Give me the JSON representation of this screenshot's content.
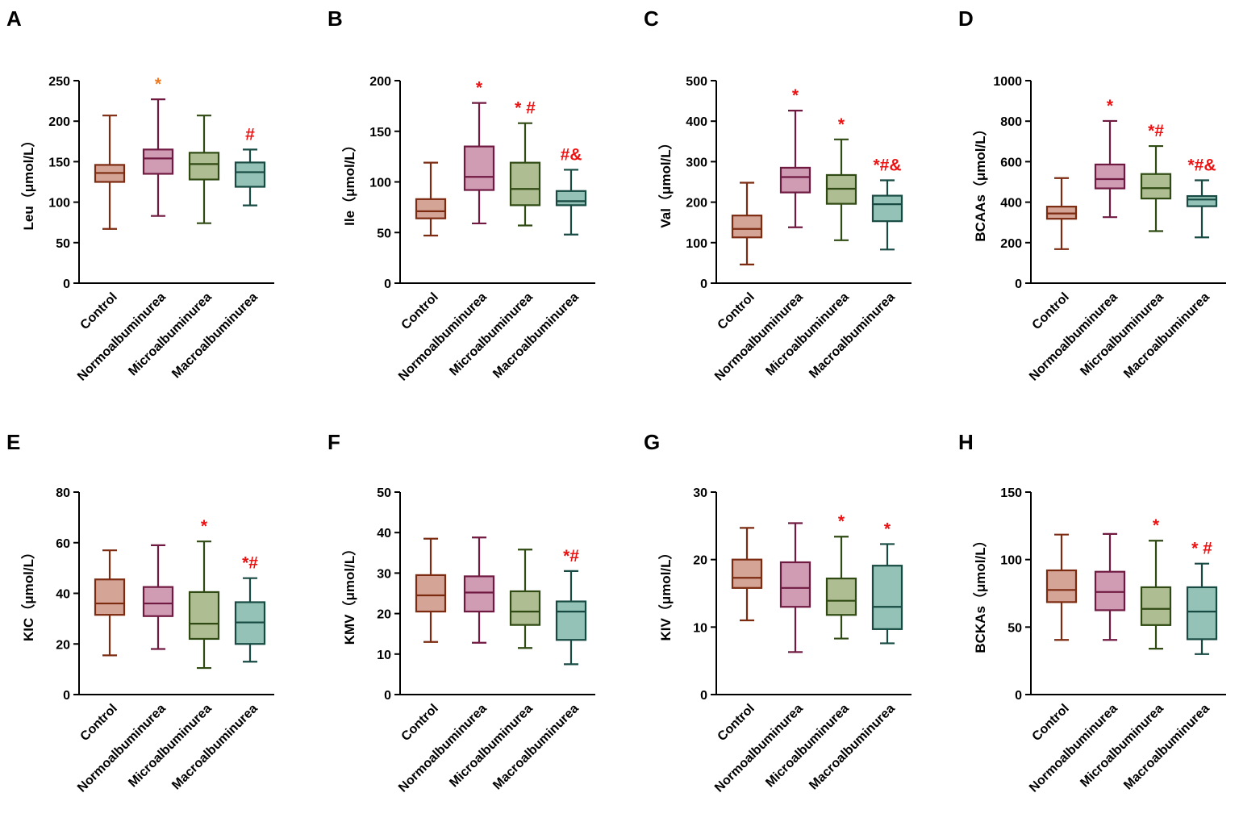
{
  "categories": [
    "Control",
    "Normoalbuminurea",
    "Microalbuminurea",
    "Macroalbuminurea"
  ],
  "colors": {
    "fill": [
      "#d4a596",
      "#cf9cb4",
      "#afbd92",
      "#94c2b6"
    ],
    "stroke": [
      "#7c2a10",
      "#701a42",
      "#2f4a12",
      "#164a42"
    ],
    "sig_red": "#ee1111",
    "sig_orange": "#f07820",
    "axis": "#000000"
  },
  "chart_data": [
    {
      "panel": "A",
      "type": "box",
      "ylabel": "Leu（μmol/L）",
      "ylim": [
        0,
        250
      ],
      "ticks": [
        0,
        50,
        100,
        150,
        200,
        250
      ],
      "boxes": [
        {
          "min": 67,
          "q1": 125,
          "median": 136,
          "q3": 146,
          "max": 207
        },
        {
          "min": 83,
          "q1": 135,
          "median": 154,
          "q3": 165,
          "max": 227
        },
        {
          "min": 74,
          "q1": 128,
          "median": 147,
          "q3": 161,
          "max": 207
        },
        {
          "min": 96,
          "q1": 119,
          "median": 137,
          "q3": 149,
          "max": 165
        }
      ],
      "annotations": [
        "",
        "*",
        "",
        "#"
      ],
      "annotation_colors": [
        "red",
        "orange",
        "red",
        "red"
      ]
    },
    {
      "panel": "B",
      "type": "box",
      "ylabel": "Ile（μmol/L）",
      "ylim": [
        0,
        200
      ],
      "ticks": [
        0,
        50,
        100,
        150,
        200
      ],
      "boxes": [
        {
          "min": 47,
          "q1": 64,
          "median": 71,
          "q3": 83,
          "max": 119
        },
        {
          "min": 59,
          "q1": 92,
          "median": 105,
          "q3": 135,
          "max": 178
        },
        {
          "min": 57,
          "q1": 77,
          "median": 93,
          "q3": 119,
          "max": 158
        },
        {
          "min": 48,
          "q1": 77,
          "median": 81,
          "q3": 91,
          "max": 112
        }
      ],
      "annotations": [
        "",
        "*",
        "* #",
        "#&"
      ],
      "annotation_colors": [
        "red",
        "red",
        "red",
        "red"
      ]
    },
    {
      "panel": "C",
      "type": "box",
      "ylabel": "Val（μmol/L）",
      "ylim": [
        0,
        500
      ],
      "ticks": [
        0,
        100,
        200,
        300,
        400,
        500
      ],
      "boxes": [
        {
          "min": 46,
          "q1": 113,
          "median": 134,
          "q3": 167,
          "max": 248
        },
        {
          "min": 138,
          "q1": 224,
          "median": 262,
          "q3": 285,
          "max": 426
        },
        {
          "min": 106,
          "q1": 196,
          "median": 233,
          "q3": 267,
          "max": 355
        },
        {
          "min": 83,
          "q1": 153,
          "median": 195,
          "q3": 216,
          "max": 254
        }
      ],
      "annotations": [
        "",
        "*",
        "*",
        "*#&"
      ],
      "annotation_colors": [
        "red",
        "red",
        "red",
        "red"
      ]
    },
    {
      "panel": "D",
      "type": "box",
      "ylabel": "BCAAs（μmol/L）",
      "ylim": [
        0,
        1000
      ],
      "ticks": [
        0,
        200,
        400,
        600,
        800,
        1000
      ],
      "boxes": [
        {
          "min": 168,
          "q1": 318,
          "median": 344,
          "q3": 378,
          "max": 519
        },
        {
          "min": 326,
          "q1": 468,
          "median": 514,
          "q3": 586,
          "max": 801
        },
        {
          "min": 257,
          "q1": 418,
          "median": 469,
          "q3": 539,
          "max": 677
        },
        {
          "min": 226,
          "q1": 380,
          "median": 413,
          "q3": 430,
          "max": 508
        }
      ],
      "annotations": [
        "",
        "*",
        "*#",
        "*#&"
      ],
      "annotation_colors": [
        "red",
        "red",
        "red",
        "red"
      ]
    },
    {
      "panel": "E",
      "type": "box",
      "ylabel": "KIC（μmol/L）",
      "ylim": [
        0,
        80
      ],
      "ticks": [
        0,
        20,
        40,
        60,
        80
      ],
      "boxes": [
        {
          "min": 15.5,
          "q1": 31.5,
          "median": 36,
          "q3": 45.5,
          "max": 57
        },
        {
          "min": 18,
          "q1": 31,
          "median": 36,
          "q3": 42.5,
          "max": 59
        },
        {
          "min": 10.5,
          "q1": 22,
          "median": 28,
          "q3": 40.5,
          "max": 60.5
        },
        {
          "min": 13,
          "q1": 20,
          "median": 28.5,
          "q3": 36.5,
          "max": 46
        }
      ],
      "annotations": [
        "",
        "",
        "*",
        "*#"
      ],
      "annotation_colors": [
        "red",
        "red",
        "red",
        "red"
      ]
    },
    {
      "panel": "F",
      "type": "box",
      "ylabel": "KMV（μmol/L）",
      "ylim": [
        0,
        50
      ],
      "ticks": [
        0,
        10,
        20,
        30,
        40,
        50
      ],
      "boxes": [
        {
          "min": 13,
          "q1": 20.5,
          "median": 24.5,
          "q3": 29.5,
          "max": 38.5
        },
        {
          "min": 12.8,
          "q1": 20.5,
          "median": 25.2,
          "q3": 29.2,
          "max": 38.8
        },
        {
          "min": 11.5,
          "q1": 17.2,
          "median": 20.5,
          "q3": 25.5,
          "max": 35.8
        },
        {
          "min": 7.5,
          "q1": 13.5,
          "median": 20.5,
          "q3": 23,
          "max": 30.5
        }
      ],
      "annotations": [
        "",
        "",
        "",
        "*#"
      ],
      "annotation_colors": [
        "red",
        "red",
        "red",
        "red"
      ]
    },
    {
      "panel": "G",
      "type": "box",
      "ylabel": "KIV（μmol/L）",
      "ylim": [
        0,
        30
      ],
      "ticks": [
        0,
        10,
        20,
        30
      ],
      "boxes": [
        {
          "min": 11,
          "q1": 15.8,
          "median": 17.3,
          "q3": 20,
          "max": 24.7
        },
        {
          "min": 6.3,
          "q1": 13,
          "median": 15.8,
          "q3": 19.6,
          "max": 25.4
        },
        {
          "min": 8.3,
          "q1": 11.8,
          "median": 13.9,
          "q3": 17.2,
          "max": 23.4
        },
        {
          "min": 7.6,
          "q1": 9.7,
          "median": 13,
          "q3": 19.1,
          "max": 22.3
        }
      ],
      "annotations": [
        "",
        "",
        "*",
        "*"
      ],
      "annotation_colors": [
        "red",
        "red",
        "red",
        "red"
      ]
    },
    {
      "panel": "H",
      "type": "box",
      "ylabel": "BCKAs（μmol/L）",
      "ylim": [
        0,
        150
      ],
      "ticks": [
        0,
        50,
        100,
        150
      ],
      "boxes": [
        {
          "min": 40.5,
          "q1": 68.5,
          "median": 77.5,
          "q3": 92,
          "max": 118.5
        },
        {
          "min": 40.5,
          "q1": 62.5,
          "median": 76,
          "q3": 91,
          "max": 119
        },
        {
          "min": 34,
          "q1": 51.5,
          "median": 63.5,
          "q3": 79.5,
          "max": 114
        },
        {
          "min": 30,
          "q1": 41,
          "median": 61.5,
          "q3": 79.5,
          "max": 97
        }
      ],
      "annotations": [
        "",
        "",
        "*",
        "* #"
      ],
      "annotation_colors": [
        "red",
        "red",
        "red",
        "red"
      ]
    }
  ]
}
